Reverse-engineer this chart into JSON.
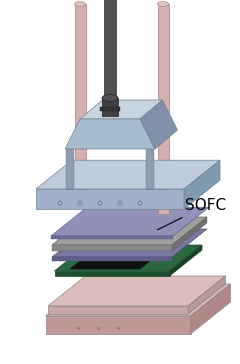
{
  "background_color": "#ffffff",
  "sofc_label": "SOFC",
  "sofc_label_fontsize": 11,
  "colors": {
    "pink_top": "#d8b8b8",
    "pink_front": "#c09898",
    "pink_right": "#b08888",
    "pink2_top": "#ddbcbc",
    "pink2_front": "#c8a8a8",
    "pink2_right": "#b89898",
    "green_top": "#2a6840",
    "green_front": "#1e5030",
    "green_right": "#184020",
    "black_cell": "#101010",
    "purple_top": "#7878a0",
    "purple_front": "#606088",
    "gray_top": "#a0a0a0",
    "gray_front": "#888888",
    "gray_right": "#707070",
    "lblue_top": "#9090b8",
    "lblue_front": "#7070a0",
    "blue_top": "#c0ccdc",
    "blue_front": "#a0b0c8",
    "blue_right": "#809ab0",
    "trap_top": "#c8d4e0",
    "trap_front": "#a8bcd0",
    "trap_right": "#8090a8",
    "leg_col": "#909db0",
    "rod_dark": "#505055",
    "rod_dark2": "#404045",
    "rod_dark3": "#353538",
    "rod_pink": "#d4b0b0",
    "rod_pink_top": "#e0c0c0"
  }
}
